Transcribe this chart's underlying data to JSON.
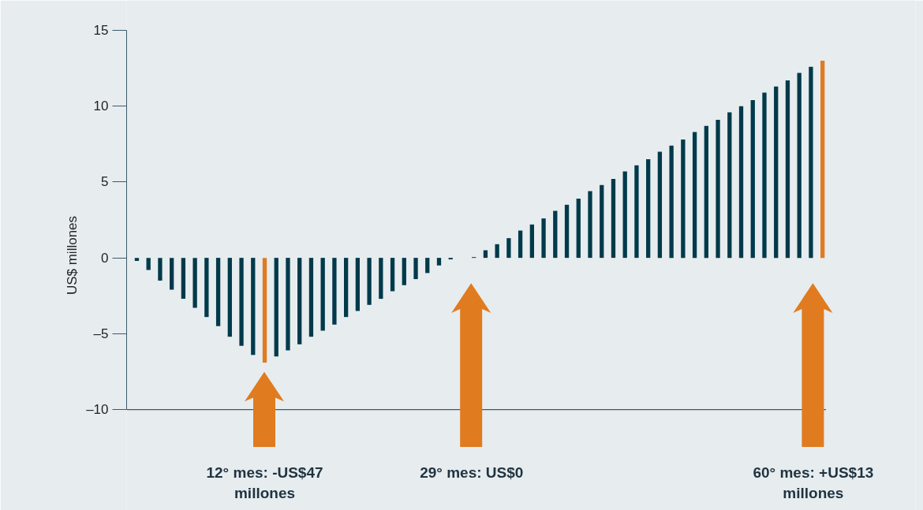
{
  "chart_data": {
    "type": "bar",
    "ylabel": "US$ millones",
    "categories": [
      null,
      null,
      null,
      null,
      null,
      null,
      null,
      null,
      null,
      null,
      null,
      null,
      null,
      null,
      null,
      null,
      null,
      null,
      null,
      null,
      null,
      null,
      null,
      null,
      null,
      null,
      null,
      null,
      null,
      null,
      null,
      null,
      null,
      null,
      null,
      null,
      null,
      null,
      null,
      null,
      null,
      null,
      null,
      null,
      null,
      null,
      null,
      null,
      null,
      null,
      null,
      null,
      null,
      null,
      null,
      null,
      null,
      null,
      null,
      null
    ],
    "values": [
      -0.2,
      -0.8,
      -1.5,
      -2.1,
      -2.7,
      -3.3,
      -3.9,
      -4.5,
      -5.2,
      -5.8,
      -6.4,
      -6.9,
      -6.5,
      -6.1,
      -5.7,
      -5.2,
      -4.8,
      -4.4,
      -3.9,
      -3.5,
      -3.1,
      -2.7,
      -2.2,
      -1.8,
      -1.4,
      -1.0,
      -0.5,
      -0.1,
      0,
      0.05,
      0.5,
      0.9,
      1.3,
      1.8,
      2.2,
      2.6,
      3.1,
      3.5,
      3.9,
      4.4,
      4.8,
      5.2,
      5.7,
      6.1,
      6.5,
      7.0,
      7.4,
      7.8,
      8.3,
      8.7,
      9.1,
      9.6,
      10.0,
      10.4,
      10.9,
      11.3,
      11.7,
      12.2,
      12.6,
      13
    ],
    "colors": [
      "#003a4a",
      "#003a4a",
      "#003a4a",
      "#003a4a",
      "#003a4a",
      "#003a4a",
      "#003a4a",
      "#003a4a",
      "#003a4a",
      "#003a4a",
      "#003a4a",
      "#e07b1f",
      "#003a4a",
      "#003a4a",
      "#003a4a",
      "#003a4a",
      "#003a4a",
      "#003a4a",
      "#003a4a",
      "#003a4a",
      "#003a4a",
      "#003a4a",
      "#003a4a",
      "#003a4a",
      "#003a4a",
      "#003a4a",
      "#003a4a",
      "#003a4a",
      "#003a4a",
      "#003a4a",
      "#003a4a",
      "#003a4a",
      "#003a4a",
      "#003a4a",
      "#003a4a",
      "#003a4a",
      "#003a4a",
      "#003a4a",
      "#003a4a",
      "#003a4a",
      "#003a4a",
      "#003a4a",
      "#003a4a",
      "#003a4a",
      "#003a4a",
      "#003a4a",
      "#003a4a",
      "#003a4a",
      "#003a4a",
      "#003a4a",
      "#003a4a",
      "#003a4a",
      "#003a4a",
      "#003a4a",
      "#003a4a",
      "#003a4a",
      "#003a4a",
      "#003a4a",
      "#003a4a",
      "#e07b1f"
    ],
    "ylim": [
      -10,
      15
    ],
    "yticks": [
      {
        "value": -10,
        "label": "–10"
      },
      {
        "value": -5,
        "label": "–5"
      },
      0,
      5,
      10,
      15
    ],
    "tick_labels": "y",
    "grid": false,
    "annotations": [
      "12° mes: -US$47\nmillones",
      "29° mes: US$0",
      "60° mes: +US$13\nmillones"
    ]
  }
}
